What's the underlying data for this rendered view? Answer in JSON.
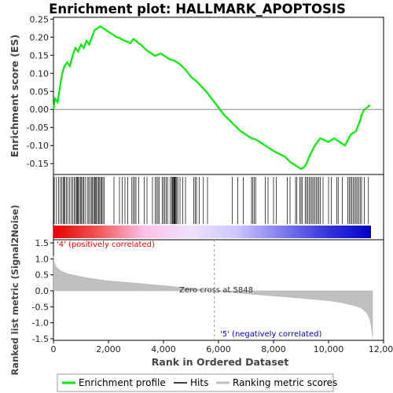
{
  "chart_data": {
    "title": "Enrichment plot: HALLMARK_APOPTOSIS",
    "colors": {
      "enrichment": "#00ee00",
      "hits": "#000000",
      "metric": "#c0c0c0",
      "positive_label": "#ff0000",
      "negative_label": "#0000dd"
    },
    "top_panel": {
      "type": "line",
      "ylabel": "Enrichment score (ES)",
      "ylim": [
        -0.18,
        0.255
      ],
      "yticks": [
        -0.15,
        -0.1,
        -0.05,
        0.0,
        0.05,
        0.1,
        0.15,
        0.2,
        0.25
      ],
      "ytick_labels": [
        "-0.15",
        "-0.10",
        "-0.05",
        "0.00",
        "0.05",
        "0.10",
        "0.15",
        "0.20",
        "0.25"
      ],
      "series": [
        {
          "name": "Enrichment profile",
          "x": [
            0,
            60,
            150,
            250,
            320,
            400,
            500,
            600,
            700,
            800,
            900,
            1000,
            1100,
            1200,
            1300,
            1400,
            1500,
            1600,
            1700,
            1800,
            1900,
            2000,
            2100,
            2200,
            2300,
            2400,
            2500,
            2600,
            2700,
            2800,
            2900,
            3000,
            3100,
            3200,
            3300,
            3400,
            3500,
            3600,
            3700,
            3800,
            3900,
            4000,
            4100,
            4200,
            4300,
            4400,
            4500,
            4600,
            4800,
            5000,
            5200,
            5400,
            5600,
            5800,
            6000,
            6200,
            6400,
            6600,
            6800,
            7000,
            7200,
            7300,
            7400,
            7600,
            7800,
            8000,
            8200,
            8400,
            8600,
            8700,
            8800,
            8900,
            9000,
            9100,
            9200,
            9300,
            9400,
            9500,
            9600,
            9700,
            9800,
            9900,
            10000,
            10100,
            10200,
            10300,
            10400,
            10500,
            10600,
            10700,
            10800,
            10900,
            11000,
            11050,
            11100,
            11150,
            11200,
            11300,
            11400,
            11500
          ],
          "y": [
            0.0,
            0.03,
            0.02,
            0.07,
            0.1,
            0.12,
            0.13,
            0.12,
            0.15,
            0.17,
            0.16,
            0.18,
            0.17,
            0.19,
            0.18,
            0.2,
            0.22,
            0.225,
            0.23,
            0.225,
            0.22,
            0.215,
            0.21,
            0.205,
            0.2,
            0.198,
            0.193,
            0.19,
            0.187,
            0.183,
            0.195,
            0.19,
            0.183,
            0.178,
            0.17,
            0.163,
            0.158,
            0.153,
            0.148,
            0.152,
            0.155,
            0.15,
            0.145,
            0.14,
            0.137,
            0.135,
            0.13,
            0.125,
            0.11,
            0.09,
            0.078,
            0.062,
            0.045,
            0.025,
            0.005,
            -0.015,
            -0.03,
            -0.045,
            -0.06,
            -0.07,
            -0.08,
            -0.082,
            -0.085,
            -0.095,
            -0.105,
            -0.115,
            -0.123,
            -0.13,
            -0.145,
            -0.15,
            -0.155,
            -0.16,
            -0.165,
            -0.16,
            -0.15,
            -0.13,
            -0.115,
            -0.1,
            -0.09,
            -0.08,
            -0.083,
            -0.087,
            -0.09,
            -0.085,
            -0.08,
            -0.085,
            -0.09,
            -0.095,
            -0.1,
            -0.085,
            -0.07,
            -0.065,
            -0.06,
            -0.05,
            -0.04,
            -0.03,
            -0.015,
            0.0,
            0.005,
            0.012
          ]
        }
      ]
    },
    "hits_panel": {
      "legend_name": "Hits",
      "hit_ranks": [
        30,
        110,
        190,
        250,
        300,
        350,
        380,
        420,
        470,
        520,
        580,
        650,
        700,
        760,
        800,
        840,
        870,
        900,
        940,
        980,
        1020,
        1060,
        1100,
        1150,
        1230,
        1280,
        1330,
        1380,
        1420,
        1460,
        1500,
        1520,
        1560,
        1600,
        1640,
        1680,
        1720,
        1760,
        1800,
        1850,
        2200,
        2400,
        2500,
        2600,
        2700,
        2850,
        2900,
        2950,
        3000,
        3100,
        3300,
        3400,
        3600,
        3700,
        3750,
        3800,
        3850,
        3950,
        4000,
        4050,
        4100,
        4150,
        4250,
        4300,
        4330,
        4350,
        4380,
        4400,
        4420,
        4450,
        4480,
        4520,
        4600,
        4700,
        4800,
        5100,
        5150,
        5200,
        5300,
        5450,
        5600,
        6500,
        6700,
        6900,
        7200,
        7250,
        7300,
        7350,
        7700,
        7800,
        8000,
        8100,
        8500,
        8600,
        8800,
        8850,
        8950,
        9000,
        9050,
        9150,
        9200,
        9250,
        9300,
        9350,
        9400,
        9450,
        9500,
        9550,
        9600,
        9650,
        9700,
        9800,
        10000,
        10100,
        10300,
        10350,
        10500,
        10700,
        10750,
        10800,
        10850,
        10900,
        10950,
        11000,
        11050,
        11100,
        11150,
        11200,
        11300,
        11450
      ],
      "colorbar_gradient": [
        "#e60000",
        "#f05858",
        "#fdc0e8",
        "#f0e0ff",
        "#d0c8ff",
        "#8080ee",
        "#3838dd",
        "#0000c8"
      ]
    },
    "bottom_panel": {
      "type": "area",
      "ylabel": "Ranked list metric (Signal2Noise)",
      "xlabel": "Rank in Ordered Dataset",
      "xlim": [
        0,
        12000
      ],
      "xticks": [
        0,
        2000,
        4000,
        6000,
        8000,
        10000,
        12000
      ],
      "xtick_labels": [
        "0",
        "2,000",
        "4,000",
        "6,000",
        "8,000",
        "10,000",
        "12,000"
      ],
      "ylim": [
        -1.55,
        1.6
      ],
      "yticks": [
        -1.5,
        -1.0,
        -0.5,
        0.0,
        0.5,
        1.0,
        1.5
      ],
      "ytick_labels": [
        "-1.5",
        "-1.0",
        "-0.5",
        "0.0",
        "0.5",
        "1.0",
        "1.5"
      ],
      "metric_x": [
        0,
        30,
        100,
        250,
        500,
        1000,
        1500,
        2000,
        3000,
        4000,
        5000,
        5848,
        7000,
        8000,
        9000,
        10000,
        10500,
        11000,
        11200,
        11400,
        11500,
        11550,
        11600
      ],
      "metric_y": [
        1.1,
        0.9,
        0.75,
        0.63,
        0.54,
        0.44,
        0.37,
        0.31,
        0.24,
        0.16,
        0.08,
        0.0,
        -0.09,
        -0.16,
        -0.23,
        -0.31,
        -0.37,
        -0.48,
        -0.55,
        -0.7,
        -0.9,
        -1.1,
        -1.45
      ],
      "series_name": "Ranking metric scores",
      "zero_cross_label": "Zero cross at 5848",
      "zero_cross_rank": 5848,
      "positive_label": "'4' (positively correlated)",
      "negative_label": "'5' (negatively correlated)"
    },
    "legend": [
      {
        "label": "Enrichment profile",
        "color": "#00ee00"
      },
      {
        "label": "Hits",
        "color": "#000000"
      },
      {
        "label": "Ranking metric scores",
        "color": "#c0c0c0"
      }
    ]
  }
}
